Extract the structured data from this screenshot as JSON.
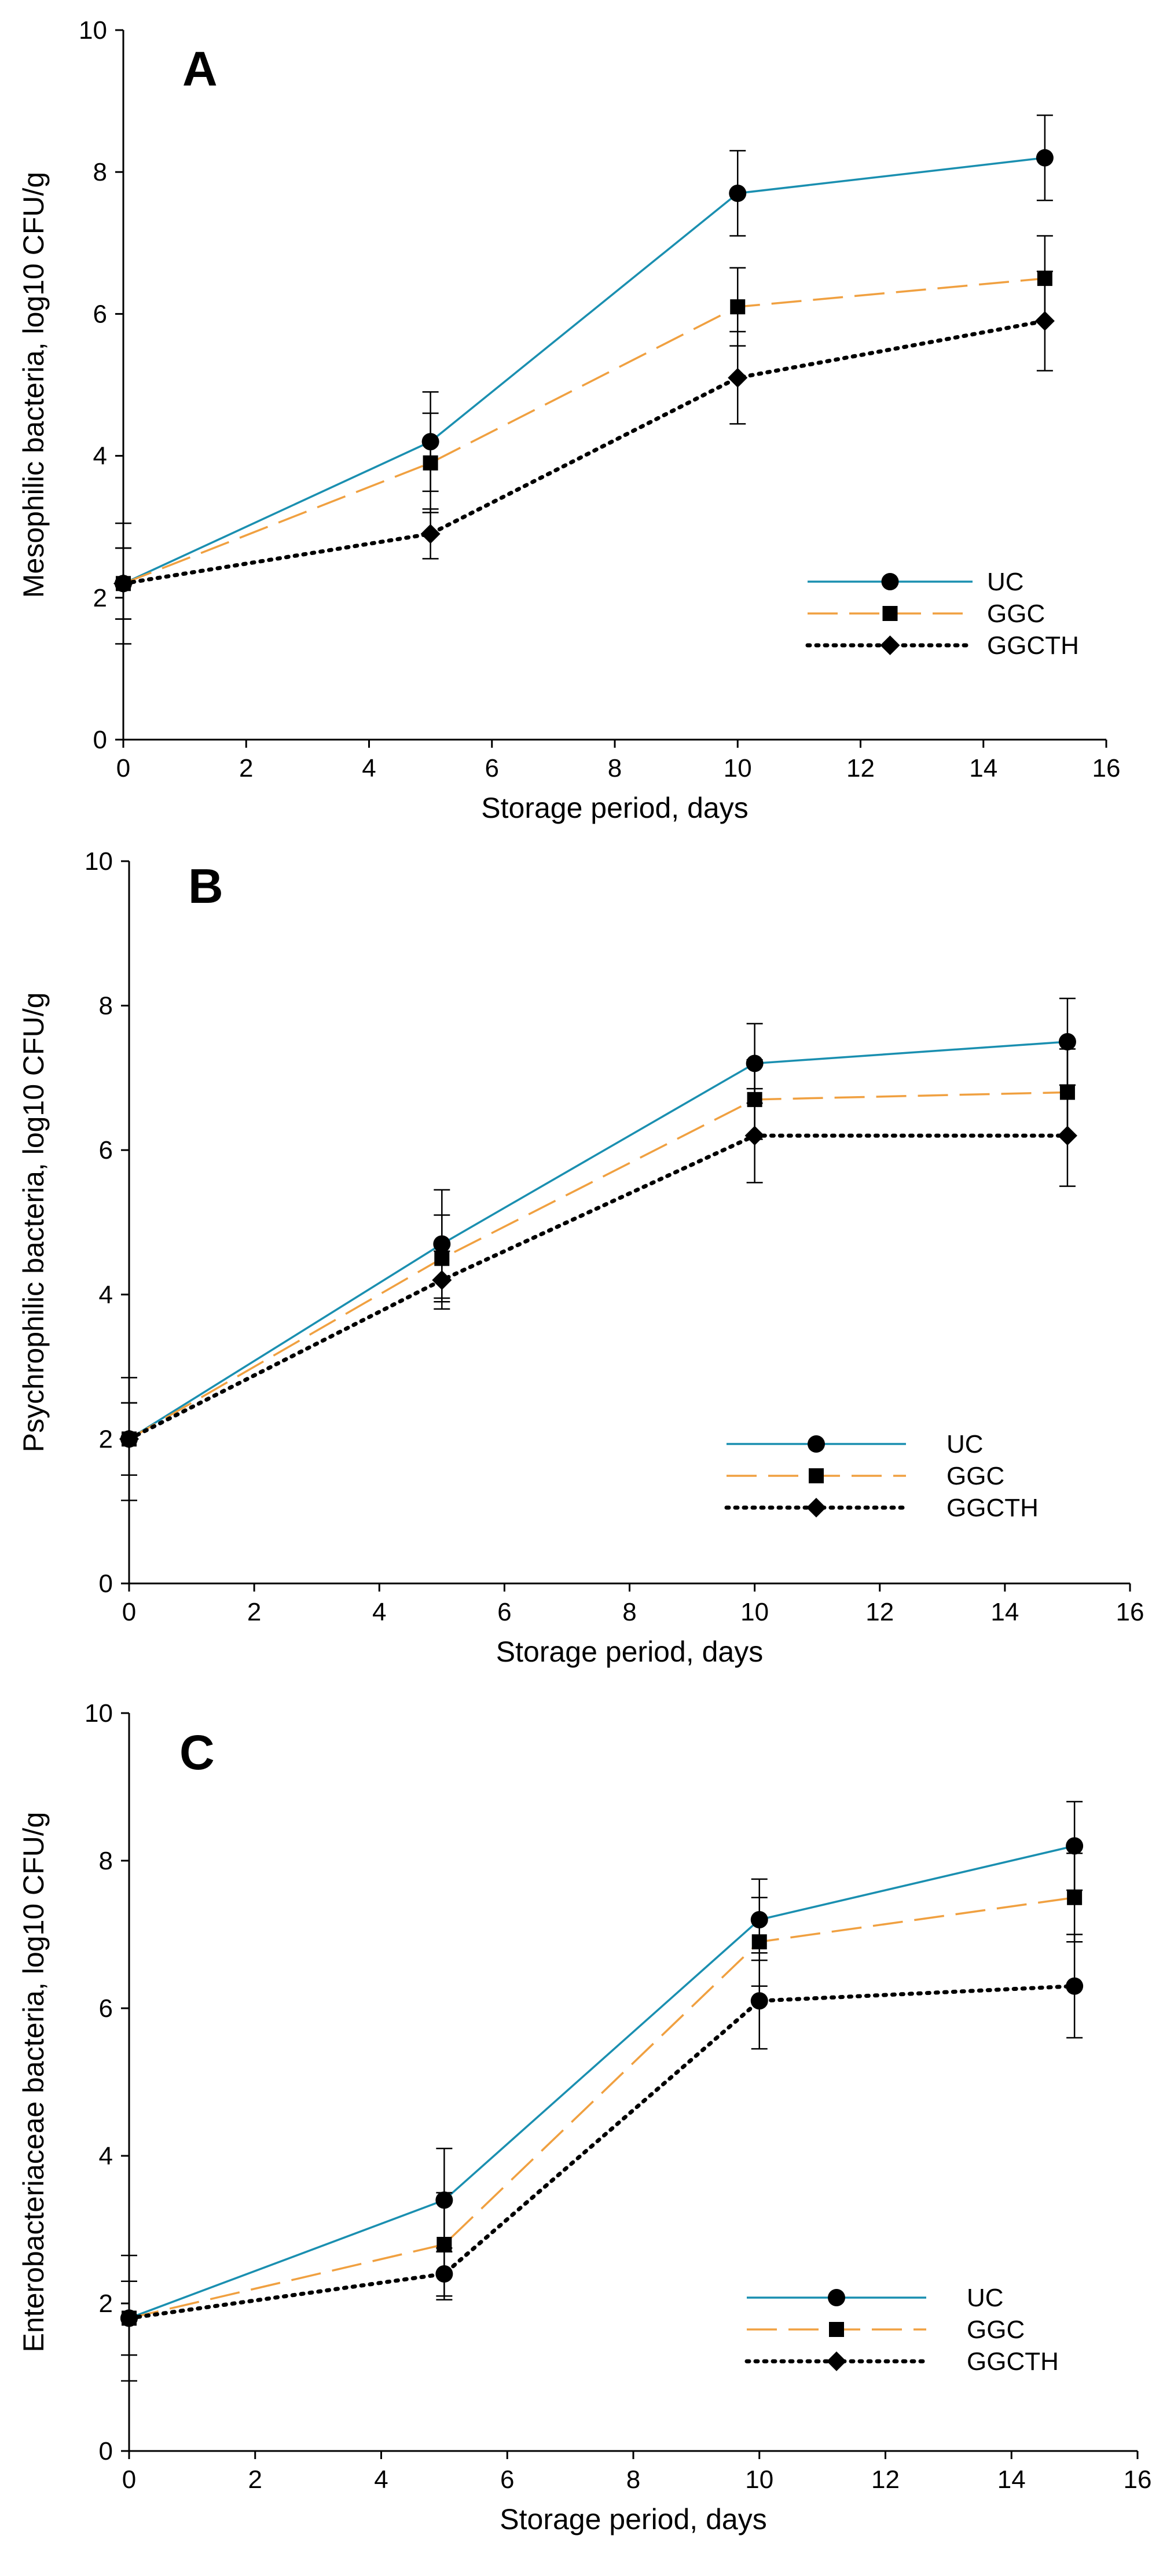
{
  "figure": {
    "colors": {
      "UC": "#1a8fb0",
      "GGC": "#f0a040",
      "GGCTH": "#000000"
    },
    "line_styles": {
      "UC": "solid",
      "GGC": "dashed",
      "GGCTH": "dotted"
    }
  },
  "chart_data": [
    {
      "type": "line",
      "panel_label": "A",
      "title": "",
      "xlabel": "Storage period, days",
      "ylabel": "Mesophilic bacteria, log10 CFU/g",
      "xlim": [
        0,
        16
      ],
      "ylim": [
        0,
        10
      ],
      "xticks": [
        0,
        2,
        4,
        6,
        8,
        10,
        12,
        14,
        16
      ],
      "yticks": [
        0,
        2,
        4,
        6,
        8,
        10
      ],
      "grid": false,
      "legend_position": "right",
      "x": [
        0,
        5,
        10,
        15
      ],
      "series": [
        {
          "name": "UC",
          "marker": "circle",
          "values": [
            2.2,
            4.2,
            7.7,
            8.2
          ],
          "errors": [
            0.85,
            0.7,
            0.6,
            0.6
          ]
        },
        {
          "name": "GGC",
          "marker": "square",
          "values": [
            2.2,
            3.9,
            6.1,
            6.5
          ],
          "errors": [
            0.5,
            0.7,
            0.55,
            0.6
          ]
        },
        {
          "name": "GGCTH",
          "marker": "diamond",
          "values": [
            2.2,
            2.9,
            5.1,
            5.9
          ],
          "errors": [
            0.5,
            0.35,
            0.65,
            0.7
          ]
        }
      ]
    },
    {
      "type": "line",
      "panel_label": "B",
      "title": "",
      "xlabel": "Storage period, days",
      "ylabel": "Psychrophilic bacteria, log10 CFU/g",
      "xlim": [
        0,
        16
      ],
      "ylim": [
        0,
        10
      ],
      "xticks": [
        0,
        2,
        4,
        6,
        8,
        10,
        12,
        14,
        16
      ],
      "yticks": [
        0,
        2,
        4,
        6,
        8,
        10
      ],
      "grid": false,
      "legend_position": "right",
      "x": [
        0,
        5,
        10,
        15
      ],
      "series": [
        {
          "name": "UC",
          "marker": "circle",
          "values": [
            2.0,
            4.7,
            7.2,
            7.5
          ],
          "errors": [
            0.85,
            0.75,
            0.55,
            0.6
          ]
        },
        {
          "name": "GGC",
          "marker": "square",
          "values": [
            2.0,
            4.5,
            6.7,
            6.8
          ],
          "errors": [
            0.5,
            0.6,
            0.55,
            0.6
          ]
        },
        {
          "name": "GGCTH",
          "marker": "diamond",
          "values": [
            2.0,
            4.2,
            6.2,
            6.2
          ],
          "errors": [
            0.5,
            0.4,
            0.65,
            0.7
          ]
        }
      ]
    },
    {
      "type": "line",
      "panel_label": "C",
      "title": "",
      "xlabel": "Storage period, days",
      "ylabel": "Enterobacteriaceae bacteria, log10 CFU/g",
      "xlim": [
        0,
        16
      ],
      "ylim": [
        0,
        10
      ],
      "xticks": [
        0,
        2,
        4,
        6,
        8,
        10,
        12,
        14,
        16
      ],
      "yticks": [
        0,
        2,
        4,
        6,
        8,
        10
      ],
      "grid": false,
      "legend_position": "right",
      "x": [
        0,
        5,
        10,
        15
      ],
      "series": [
        {
          "name": "UC",
          "marker": "circle",
          "values": [
            1.8,
            3.4,
            7.2,
            8.2
          ],
          "errors": [
            0.85,
            0.7,
            0.55,
            0.6
          ]
        },
        {
          "name": "GGC",
          "marker": "square",
          "values": [
            1.8,
            2.8,
            6.9,
            7.5
          ],
          "errors": [
            0.5,
            0.7,
            0.6,
            0.6
          ]
        },
        {
          "name": "GGCTH",
          "marker": "circle",
          "values": [
            1.8,
            2.4,
            6.1,
            6.3
          ],
          "errors": [
            0.5,
            0.35,
            0.65,
            0.7
          ]
        }
      ],
      "legend_markers": {
        "UC": "circle",
        "GGC": "square",
        "GGCTH": "diamond"
      }
    }
  ]
}
